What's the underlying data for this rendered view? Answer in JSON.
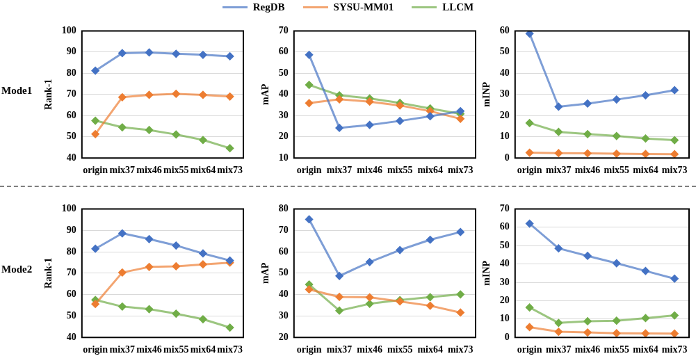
{
  "chart_data": [
    {
      "type": "line",
      "ylabel": "Rank-1",
      "annotations": [
        "Mode1"
      ],
      "legend": "top",
      "marker": "diamond",
      "grid": "y",
      "categories": [
        "origin",
        "mix37",
        "mix46",
        "mix55",
        "mix64",
        "mix73"
      ],
      "ylim": [
        40,
        100
      ],
      "yticks": [
        40,
        50,
        60,
        70,
        80,
        90,
        100
      ],
      "series": [
        {
          "name": "RegDB",
          "color": "#4472c4",
          "values": [
            81.2,
            89.5,
            89.8,
            89.2,
            88.7,
            88.0
          ]
        },
        {
          "name": "SYSU-MM01",
          "color": "#ed7d31",
          "values": [
            51.3,
            68.7,
            69.8,
            70.3,
            69.8,
            69.0
          ]
        },
        {
          "name": "LLCM",
          "color": "#70ad47",
          "values": [
            57.6,
            54.5,
            53.2,
            51.1,
            48.5,
            44.6
          ]
        }
      ]
    },
    {
      "type": "line",
      "ylabel": "mAP",
      "marker": "diamond",
      "grid": "y",
      "categories": [
        "origin",
        "mix37",
        "mix46",
        "mix55",
        "mix64",
        "mix73"
      ],
      "ylim": [
        10,
        70
      ],
      "yticks": [
        10,
        20,
        30,
        40,
        50,
        60,
        70
      ],
      "series": [
        {
          "color": "#4472c4",
          "values": [
            58.7,
            24.2,
            25.6,
            27.5,
            29.7,
            32.1
          ]
        },
        {
          "color": "#ed7d31",
          "values": [
            35.9,
            37.7,
            36.6,
            34.8,
            32.1,
            28.5
          ]
        },
        {
          "color": "#70ad47",
          "values": [
            44.5,
            39.6,
            38.1,
            36.0,
            33.4,
            30.8
          ]
        }
      ]
    },
    {
      "type": "line",
      "ylabel": "mINP",
      "marker": "diamond",
      "grid": "y",
      "categories": [
        "origin",
        "mix37",
        "mix46",
        "mix55",
        "mix64",
        "mix73"
      ],
      "ylim": [
        0,
        60
      ],
      "yticks": [
        0,
        10,
        20,
        30,
        40,
        50,
        60
      ],
      "series": [
        {
          "color": "#4472c4",
          "values": [
            58.7,
            24.2,
            25.7,
            27.6,
            29.6,
            32.0
          ]
        },
        {
          "color": "#ed7d31",
          "values": [
            2.5,
            2.3,
            2.2,
            2.0,
            1.9,
            1.8
          ]
        },
        {
          "color": "#70ad47",
          "values": [
            16.5,
            12.3,
            11.3,
            10.4,
            9.2,
            8.4
          ]
        }
      ]
    },
    {
      "type": "line",
      "ylabel": "Rank-1",
      "annotations": [
        "Mode2"
      ],
      "marker": "diamond",
      "grid": "y",
      "categories": [
        "origin",
        "mix37",
        "mix46",
        "mix55",
        "mix64",
        "mix73"
      ],
      "ylim": [
        40,
        100
      ],
      "yticks": [
        40,
        50,
        60,
        70,
        80,
        90,
        100
      ],
      "series": [
        {
          "color": "#4472c4",
          "values": [
            81.4,
            88.6,
            85.9,
            82.9,
            79.2,
            75.9
          ]
        },
        {
          "color": "#ed7d31",
          "values": [
            55.6,
            70.3,
            72.9,
            73.2,
            74.1,
            74.9
          ]
        },
        {
          "color": "#70ad47",
          "values": [
            57.5,
            54.4,
            53.2,
            51.1,
            48.5,
            44.6
          ]
        }
      ]
    },
    {
      "type": "line",
      "ylabel": "mAP",
      "marker": "diamond",
      "grid": "y",
      "categories": [
        "origin",
        "mix37",
        "mix46",
        "mix55",
        "mix64",
        "mix73"
      ],
      "ylim": [
        20,
        80
      ],
      "yticks": [
        20,
        30,
        40,
        50,
        60,
        70,
        80
      ],
      "series": [
        {
          "color": "#4472c4",
          "values": [
            75.1,
            48.7,
            55.2,
            60.8,
            65.6,
            69.2
          ]
        },
        {
          "color": "#ed7d31",
          "values": [
            42.4,
            38.9,
            38.7,
            36.8,
            34.8,
            31.6
          ]
        },
        {
          "color": "#70ad47",
          "values": [
            44.7,
            32.5,
            35.7,
            37.4,
            38.8,
            40.1
          ]
        }
      ]
    },
    {
      "type": "line",
      "ylabel": "mINP",
      "marker": "diamond",
      "grid": "y",
      "categories": [
        "origin",
        "mix37",
        "mix46",
        "mix55",
        "mix64",
        "mix73"
      ],
      "ylim": [
        0,
        70
      ],
      "yticks": [
        0,
        10,
        20,
        30,
        40,
        50,
        60,
        70
      ],
      "series": [
        {
          "color": "#4472c4",
          "values": [
            62.0,
            48.5,
            44.4,
            40.4,
            36.2,
            32.0
          ]
        },
        {
          "color": "#ed7d31",
          "values": [
            5.6,
            3.1,
            2.7,
            2.3,
            2.2,
            2.1
          ]
        },
        {
          "color": "#70ad47",
          "values": [
            16.3,
            7.9,
            8.8,
            9.1,
            10.5,
            12.0
          ]
        }
      ]
    }
  ]
}
